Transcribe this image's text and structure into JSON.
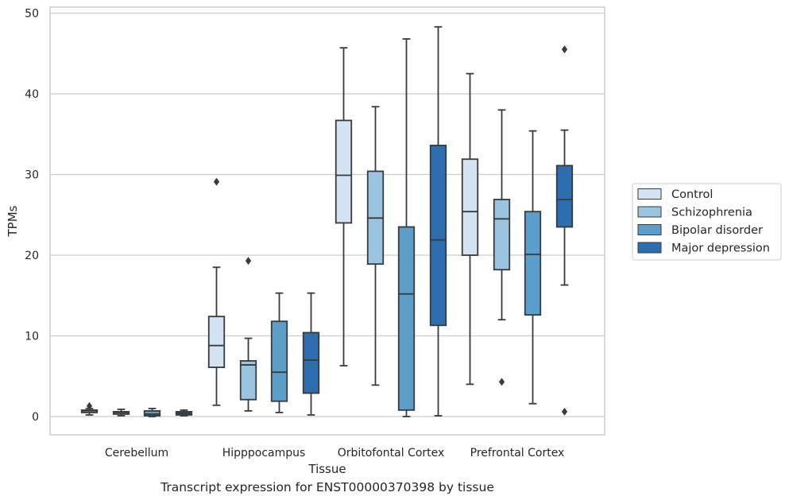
{
  "caption": "Transcript expression for ENST00000370398 by tissue",
  "chart_data": {
    "type": "boxplot",
    "xlabel": "Tissue",
    "ylabel": "TPMs",
    "ylim": [
      -2.2,
      51
    ],
    "yticks": [
      0,
      10,
      20,
      30,
      40,
      50
    ],
    "grid": "horizontal",
    "legend_position": "right",
    "categories": [
      "Cerebellum",
      "Hipppocampus",
      "Orbitofontal Cortex",
      "Prefrontal Cortex"
    ],
    "series": [
      {
        "name": "Control",
        "color": "#d4e3f2",
        "boxes": [
          {
            "whisker_low": 0.2,
            "q1": 0.5,
            "median": 0.7,
            "q3": 0.8,
            "whisker_high": 1.0,
            "outliers": [
              1.3
            ]
          },
          {
            "whisker_low": 1.4,
            "q1": 6.1,
            "median": 8.8,
            "q3": 12.4,
            "whisker_high": 18.5,
            "outliers": [
              29.1
            ]
          },
          {
            "whisker_low": 6.3,
            "q1": 24.0,
            "median": 29.9,
            "q3": 36.7,
            "whisker_high": 45.7,
            "outliers": []
          },
          {
            "whisker_low": 4.0,
            "q1": 20.0,
            "median": 25.4,
            "q3": 31.9,
            "whisker_high": 42.5,
            "outliers": []
          }
        ]
      },
      {
        "name": "Schizophrenia",
        "color": "#9ac4df",
        "boxes": [
          {
            "whisker_low": 0.1,
            "q1": 0.3,
            "median": 0.5,
            "q3": 0.6,
            "whisker_high": 0.9,
            "outliers": []
          },
          {
            "whisker_low": 0.7,
            "q1": 2.1,
            "median": 6.4,
            "q3": 6.9,
            "whisker_high": 9.7,
            "outliers": [
              19.3
            ]
          },
          {
            "whisker_low": 3.9,
            "q1": 18.9,
            "median": 24.6,
            "q3": 30.4,
            "whisker_high": 38.4,
            "outliers": []
          },
          {
            "whisker_low": 12.0,
            "q1": 18.2,
            "median": 24.5,
            "q3": 26.9,
            "whisker_high": 38.0,
            "outliers": [
              4.3
            ]
          }
        ]
      },
      {
        "name": "Bipolar disorder",
        "color": "#5a9ec9",
        "boxes": [
          {
            "whisker_low": 0.0,
            "q1": 0.1,
            "median": 0.3,
            "q3": 0.7,
            "whisker_high": 1.0,
            "outliers": []
          },
          {
            "whisker_low": 0.5,
            "q1": 1.9,
            "median": 5.5,
            "q3": 11.8,
            "whisker_high": 15.3,
            "outliers": []
          },
          {
            "whisker_low": 0.0,
            "q1": 0.8,
            "median": 15.2,
            "q3": 23.5,
            "whisker_high": 46.8,
            "outliers": []
          },
          {
            "whisker_low": 1.6,
            "q1": 12.6,
            "median": 20.1,
            "q3": 25.4,
            "whisker_high": 35.4,
            "outliers": []
          }
        ]
      },
      {
        "name": "Major depression",
        "color": "#2c6eb0",
        "boxes": [
          {
            "whisker_low": 0.1,
            "q1": 0.2,
            "median": 0.4,
            "q3": 0.6,
            "whisker_high": 0.8,
            "outliers": []
          },
          {
            "whisker_low": 0.2,
            "q1": 2.9,
            "median": 7.0,
            "q3": 10.4,
            "whisker_high": 15.3,
            "outliers": []
          },
          {
            "whisker_low": 0.1,
            "q1": 11.3,
            "median": 21.9,
            "q3": 33.6,
            "whisker_high": 48.3,
            "outliers": []
          },
          {
            "whisker_low": 16.3,
            "q1": 23.5,
            "median": 26.9,
            "q3": 31.1,
            "whisker_high": 35.5,
            "outliers": [
              45.5,
              0.6
            ]
          }
        ]
      }
    ]
  }
}
